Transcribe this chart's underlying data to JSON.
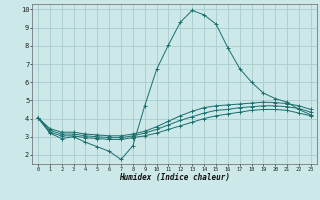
{
  "xlabel": "Humidex (Indice chaleur)",
  "bg_color": "#cce8e8",
  "grid_color": "#aacccc",
  "line_color": "#1a6e6e",
  "xlim": [
    -0.5,
    23.5
  ],
  "ylim": [
    1.5,
    10.3
  ],
  "xticks": [
    0,
    1,
    2,
    3,
    4,
    5,
    6,
    7,
    8,
    9,
    10,
    11,
    12,
    13,
    14,
    15,
    16,
    17,
    18,
    19,
    20,
    21,
    22,
    23
  ],
  "yticks": [
    2,
    3,
    4,
    5,
    6,
    7,
    8,
    9,
    10
  ],
  "line1_x": [
    0,
    1,
    2,
    3,
    4,
    5,
    6,
    7,
    8,
    9,
    10,
    11,
    12,
    13,
    14,
    15,
    16,
    17,
    18,
    19,
    20,
    21,
    22,
    23
  ],
  "line1_y": [
    4.05,
    3.2,
    2.9,
    3.0,
    2.7,
    2.45,
    2.2,
    1.75,
    2.5,
    4.7,
    6.7,
    8.05,
    9.3,
    9.95,
    9.7,
    9.2,
    7.9,
    6.75,
    6.0,
    5.4,
    5.1,
    4.9,
    4.5,
    4.2
  ],
  "line2_x": [
    0,
    1,
    2,
    3,
    4,
    5,
    6,
    7,
    8,
    9,
    10,
    11,
    12,
    13,
    14,
    15,
    16,
    17,
    18,
    19,
    20,
    21,
    22,
    23
  ],
  "line2_y": [
    4.05,
    3.25,
    3.05,
    3.05,
    2.95,
    2.9,
    2.85,
    2.85,
    2.95,
    3.05,
    3.2,
    3.4,
    3.6,
    3.8,
    4.0,
    4.15,
    4.25,
    4.35,
    4.45,
    4.5,
    4.5,
    4.45,
    4.3,
    4.15
  ],
  "line3_x": [
    0,
    1,
    2,
    3,
    4,
    5,
    6,
    7,
    8,
    9,
    10,
    11,
    12,
    13,
    14,
    15,
    16,
    17,
    18,
    19,
    20,
    21,
    22,
    23
  ],
  "line3_y": [
    4.05,
    3.35,
    3.15,
    3.15,
    3.05,
    3.0,
    2.95,
    2.95,
    3.05,
    3.2,
    3.4,
    3.65,
    3.9,
    4.1,
    4.3,
    4.45,
    4.5,
    4.6,
    4.65,
    4.7,
    4.7,
    4.65,
    4.55,
    4.35
  ],
  "line4_x": [
    0,
    1,
    2,
    3,
    4,
    5,
    6,
    7,
    8,
    9,
    10,
    11,
    12,
    13,
    14,
    15,
    16,
    17,
    18,
    19,
    20,
    21,
    22,
    23
  ],
  "line4_y": [
    4.05,
    3.45,
    3.25,
    3.25,
    3.15,
    3.1,
    3.05,
    3.05,
    3.15,
    3.3,
    3.55,
    3.85,
    4.15,
    4.4,
    4.6,
    4.7,
    4.75,
    4.8,
    4.85,
    4.9,
    4.88,
    4.82,
    4.7,
    4.5
  ]
}
